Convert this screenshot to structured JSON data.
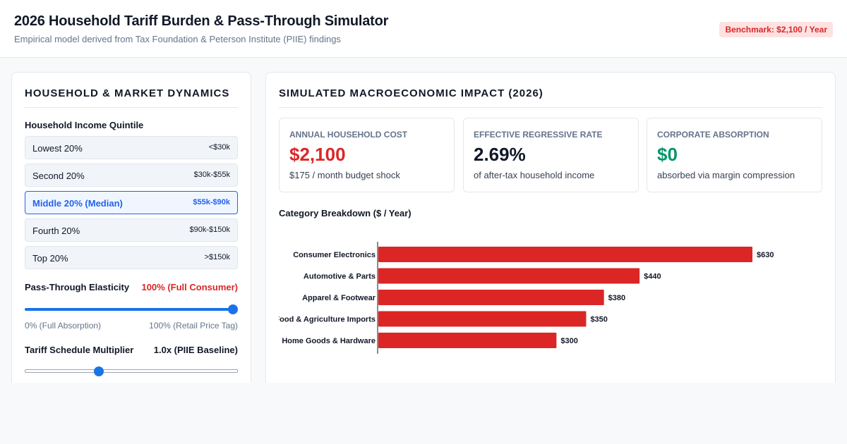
{
  "header": {
    "title": "2026 Household Tariff Burden & Pass-Through Simulator",
    "subtitle": "Empirical model derived from Tax Foundation & Peterson Institute (PIIE) findings",
    "benchmark": "Benchmark: $2,100 / Year"
  },
  "left_panel": {
    "title": "HOUSEHOLD & MARKET DYNAMICS",
    "quintile_label": "Household Income Quintile",
    "quintiles": [
      {
        "label": "Lowest 20%",
        "range": "<$30k",
        "active": false
      },
      {
        "label": "Second 20%",
        "range": "$30k-$55k",
        "active": false
      },
      {
        "label": "Middle 20% (Median)",
        "range": "$55k-$90k",
        "active": true
      },
      {
        "label": "Fourth 20%",
        "range": "$90k-$150k",
        "active": false
      },
      {
        "label": "Top 20%",
        "range": ">$150k",
        "active": false
      }
    ],
    "elasticity": {
      "label": "Pass-Through Elasticity",
      "value": "100% (Full Consumer)",
      "value_color": "#dc2626",
      "level": 1.0,
      "min_caption": "0% (Full Absorption)",
      "max_caption": "100% (Retail Price Tag)"
    },
    "multiplier": {
      "label": "Tariff Schedule Multiplier",
      "value": "1.0x (PIIE Baseline)",
      "level": 0.34
    }
  },
  "right_panel": {
    "title": "SIMULATED MACROECONOMIC IMPACT (2026)",
    "cards": [
      {
        "title": "ANNUAL HOUSEHOLD COST",
        "value": "$2,100",
        "note": "$175 / month budget shock",
        "color": "#dc2626"
      },
      {
        "title": "EFFECTIVE REGRESSIVE RATE",
        "value": "2.69%",
        "note": "of after-tax household income",
        "color": "#111827"
      },
      {
        "title": "CORPORATE ABSORPTION",
        "value": "$0",
        "note": "absorbed via margin compression",
        "color": "#059669"
      }
    ],
    "chart_title": "Category Breakdown ($ / Year)"
  },
  "chart_data": {
    "type": "bar",
    "orientation": "horizontal",
    "categories": [
      "Consumer Electronics",
      "Automotive & Parts",
      "Apparel & Footwear",
      "Food & Agriculture Imports",
      "Home Goods & Hardware"
    ],
    "values": [
      630,
      440,
      380,
      350,
      300
    ],
    "data_labels": [
      "$630",
      "$440",
      "$380",
      "$350",
      "$300"
    ],
    "bar_color": "#dc2626",
    "xlim": [
      0,
      630
    ],
    "grid": false
  }
}
